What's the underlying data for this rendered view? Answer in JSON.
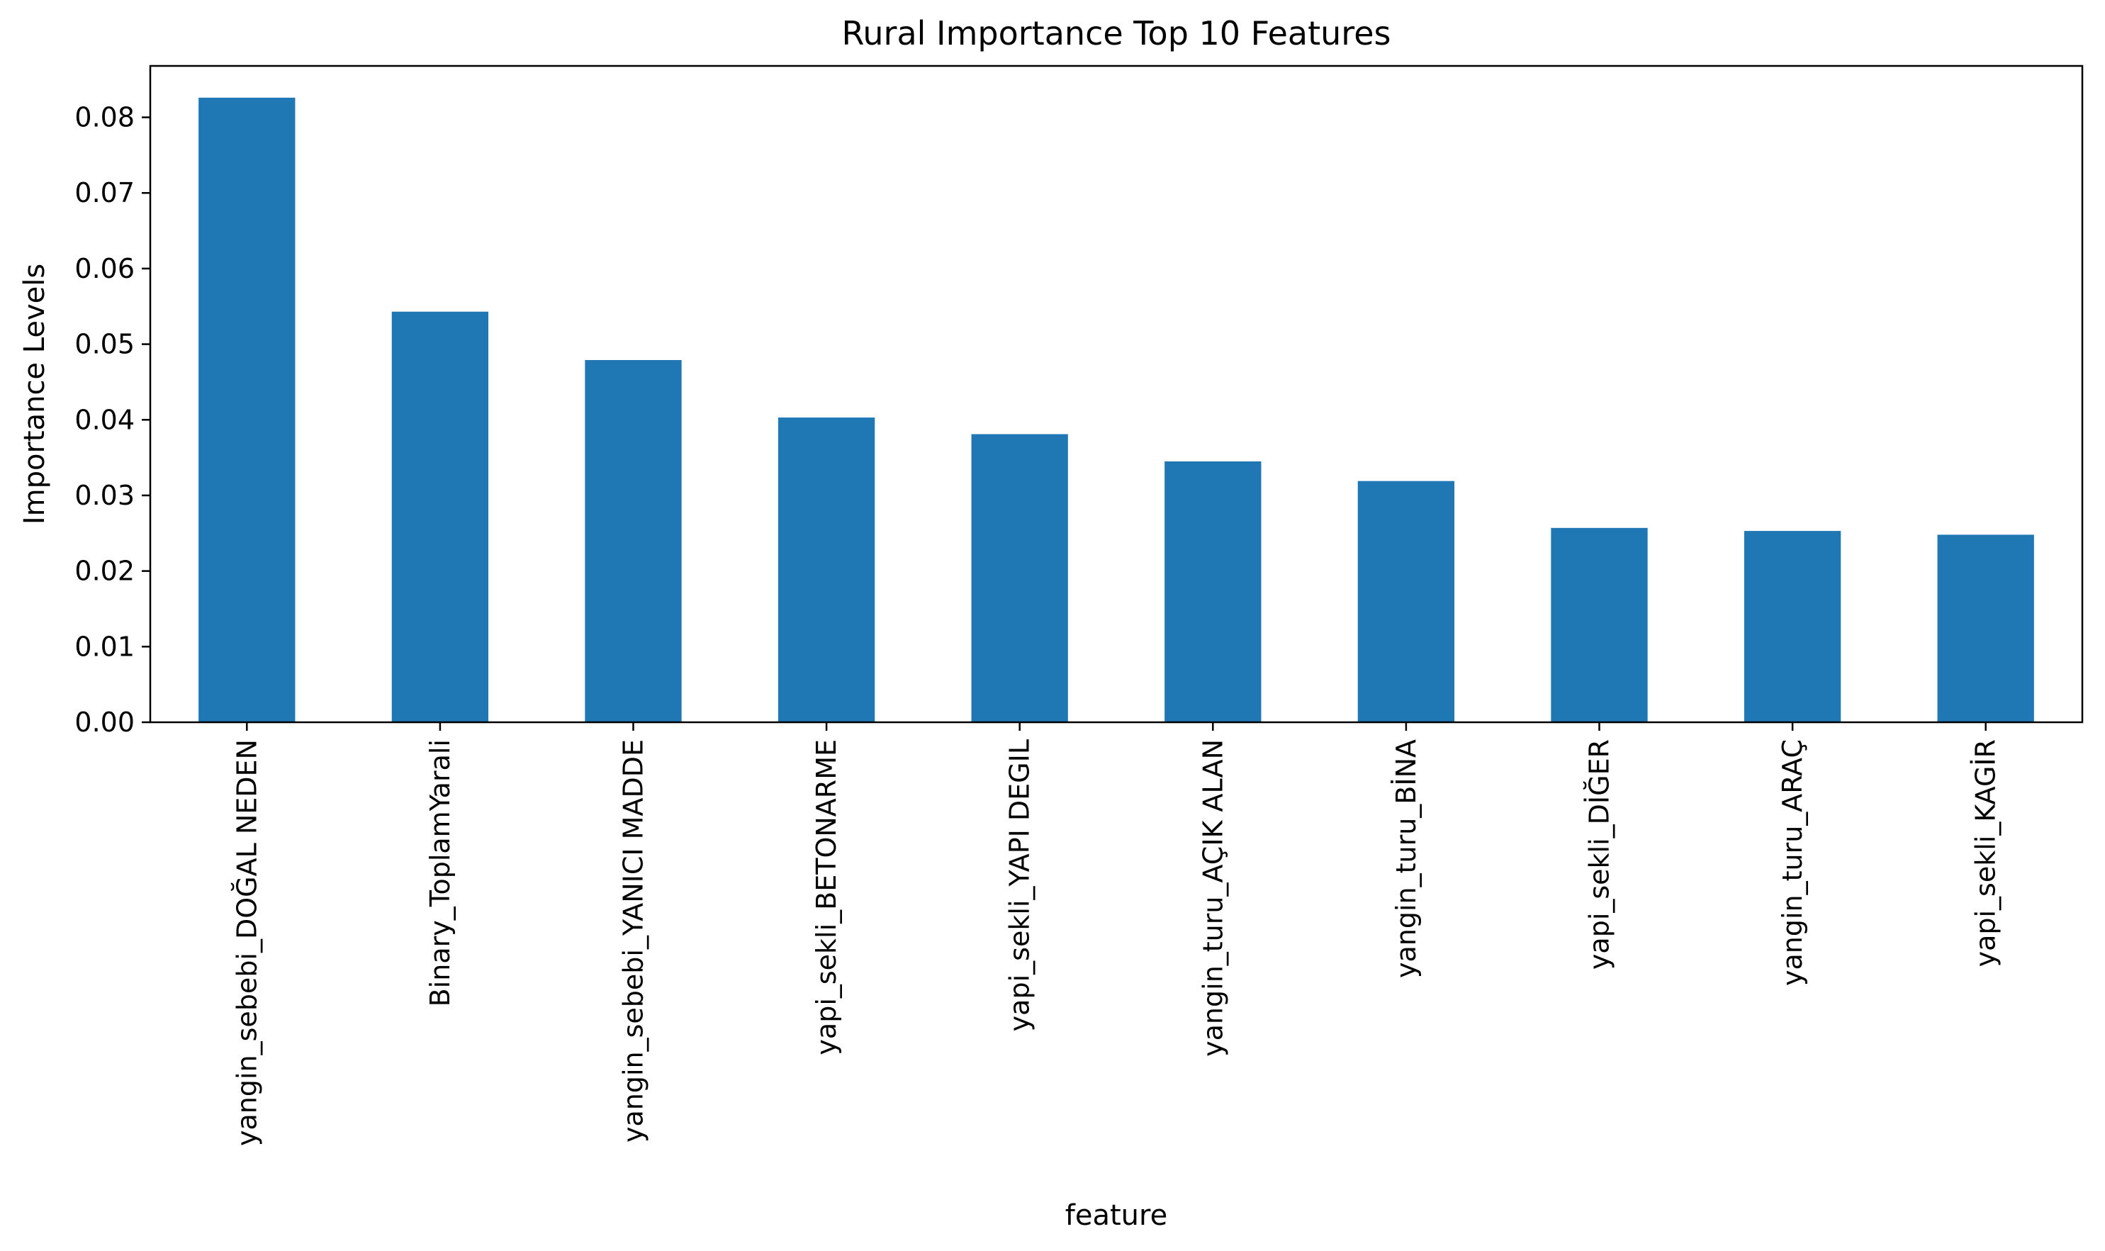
{
  "chart_data": {
    "type": "bar",
    "title": "Rural Importance Top 10 Features",
    "xlabel": "feature",
    "ylabel": "Importance Levels",
    "categories": [
      "yangin_sebebi_DOĞAL NEDEN",
      "Binary_ToplamYarali",
      "yangin_sebebi_YANICI MADDE",
      "yapi_sekli_BETONARME",
      "yapi_sekli_YAPI DEGIL",
      "yangin_turu_AÇIK ALAN",
      "yangin_turu_BİNA",
      "yapi_sekli_DİĞER",
      "yangin_turu_ARAÇ",
      "yapi_sekli_KAGİR"
    ],
    "values": [
      0.0826,
      0.0543,
      0.0479,
      0.0403,
      0.0381,
      0.0345,
      0.0319,
      0.0257,
      0.0253,
      0.0248
    ],
    "ylim": [
      0,
      0.0868
    ],
    "yticks": [
      "0.00",
      "0.01",
      "0.02",
      "0.03",
      "0.04",
      "0.05",
      "0.06",
      "0.07",
      "0.08"
    ],
    "bar_color": "#1f77b4",
    "grid": false,
    "legend": "none"
  }
}
